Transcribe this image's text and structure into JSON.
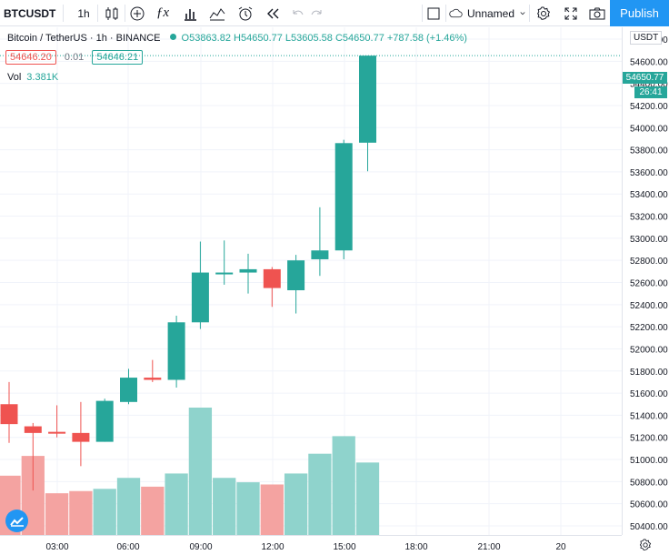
{
  "toolbar": {
    "symbol": "BTCUSDT",
    "interval": "1h",
    "layout_name": "Unnamed",
    "publish_label": "Publish",
    "icons": [
      "candles-icon",
      "add-indicator-icon",
      "fx-icon",
      "bar-chart-icon",
      "compare-icon",
      "alert-icon",
      "replay-icon",
      "undo-icon",
      "redo-icon",
      "checkbox-icon",
      "cloud-icon",
      "chevron-down-icon",
      "settings-icon",
      "fullscreen-icon",
      "camera-icon"
    ]
  },
  "legend": {
    "title": "Bitcoin / TetherUS · 1h · BINANCE",
    "o": "O53863.82",
    "h": "H54650.77",
    "l": "L53605.58",
    "c": "C54650.77",
    "change": "+787.58 (+1.46%)",
    "status_color": "#26a69a"
  },
  "bid_ask": {
    "bid": "54646.20",
    "spread": "0.01",
    "ask": "54646.21"
  },
  "volume": {
    "label": "Vol",
    "value": "3.381K"
  },
  "price_axis": {
    "currency": "USDT",
    "last_price": "54650.77",
    "countdown": "26:41"
  },
  "colors": {
    "up": "#26a69a",
    "down": "#ef5350",
    "up_volume": "#8fd3cc",
    "down_volume": "#f4a3a1",
    "accent": "#2196f3"
  },
  "chart_data": {
    "type": "candlestick",
    "price_ticks": [
      50400,
      50600,
      50800,
      51000,
      51200,
      51400,
      51600,
      51800,
      52000,
      52200,
      52400,
      52600,
      52800,
      53000,
      53200,
      53400,
      53600,
      53800,
      54000,
      54200,
      54400,
      54600,
      54800
    ],
    "ylim": [
      50300,
      55000
    ],
    "time_ticks": [
      "03:00",
      "06:00",
      "09:00",
      "12:00",
      "15:00",
      "18:00",
      "21:00",
      "20"
    ],
    "candles": [
      {
        "o": 51500,
        "h": 51700,
        "l": 51150,
        "c": 51320
      },
      {
        "o": 51300,
        "h": 51330,
        "l": 50720,
        "c": 51240
      },
      {
        "o": 51250,
        "h": 51490,
        "l": 51200,
        "c": 51240
      },
      {
        "o": 51240,
        "h": 51520,
        "l": 50940,
        "c": 51160
      },
      {
        "o": 51160,
        "h": 51550,
        "l": 51160,
        "c": 51530
      },
      {
        "o": 51520,
        "h": 51820,
        "l": 51500,
        "c": 51740
      },
      {
        "o": 51740,
        "h": 51900,
        "l": 51700,
        "c": 51720
      },
      {
        "o": 51720,
        "h": 52300,
        "l": 51650,
        "c": 52240
      },
      {
        "o": 52240,
        "h": 52970,
        "l": 52180,
        "c": 52690
      },
      {
        "o": 52690,
        "h": 52980,
        "l": 52580,
        "c": 52690
      },
      {
        "o": 52690,
        "h": 52860,
        "l": 52500,
        "c": 52720
      },
      {
        "o": 52720,
        "h": 52740,
        "l": 52380,
        "c": 52550
      },
      {
        "o": 52530,
        "h": 52850,
        "l": 52320,
        "c": 52800
      },
      {
        "o": 52810,
        "h": 53280,
        "l": 52660,
        "c": 52890
      },
      {
        "o": 52890,
        "h": 53890,
        "l": 52810,
        "c": 53860
      },
      {
        "o": 53863.82,
        "h": 54650.77,
        "l": 53605.58,
        "c": 54650.77
      }
    ],
    "volumes": [
      0.27,
      0.36,
      0.19,
      0.2,
      0.21,
      0.26,
      0.22,
      0.28,
      0.58,
      0.26,
      0.24,
      0.23,
      0.28,
      0.37,
      0.45,
      0.33
    ]
  }
}
